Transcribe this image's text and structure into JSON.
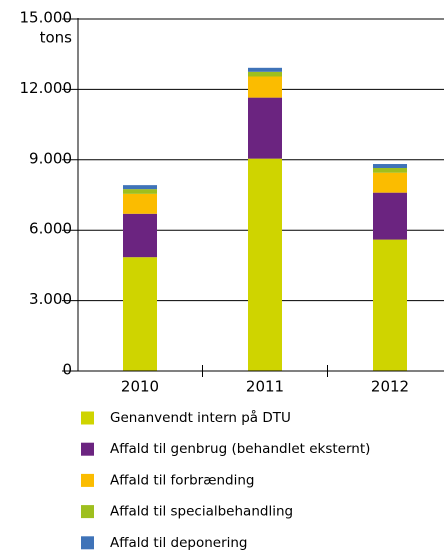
{
  "chart_data": {
    "type": "stacked_bar",
    "y_label": "tons",
    "categories": [
      "2010",
      "2011",
      "2012"
    ],
    "series": [
      {
        "name": "Genanvendt intern på DTU",
        "color": "#cfd400",
        "values": [
          4850,
          9050,
          5600
        ]
      },
      {
        "name": "Affald til genbrug (behandlet eksternt)",
        "color": "#6b2480",
        "values": [
          1850,
          2600,
          2000
        ]
      },
      {
        "name": "Affald til forbrænding",
        "color": "#fbbc00",
        "values": [
          850,
          900,
          850
        ]
      },
      {
        "name": "Affald til specialbehandling",
        "color": "#9ebf1e",
        "values": [
          200,
          200,
          200
        ]
      },
      {
        "name": "Affald til deponering",
        "color": "#3f73b8",
        "values": [
          170,
          170,
          170
        ]
      }
    ],
    "ylim": [
      0,
      15000
    ],
    "yticks": [
      0,
      {
        "value": 3000,
        "label": "3.000"
      },
      {
        "value": 6000,
        "label": "6.000"
      },
      {
        "value": 9000,
        "label": "9.000"
      },
      {
        "value": 12000,
        "label": "12.000"
      },
      {
        "value": 15000,
        "label": "15.000"
      }
    ],
    "grid": true,
    "legend": "bottom"
  }
}
